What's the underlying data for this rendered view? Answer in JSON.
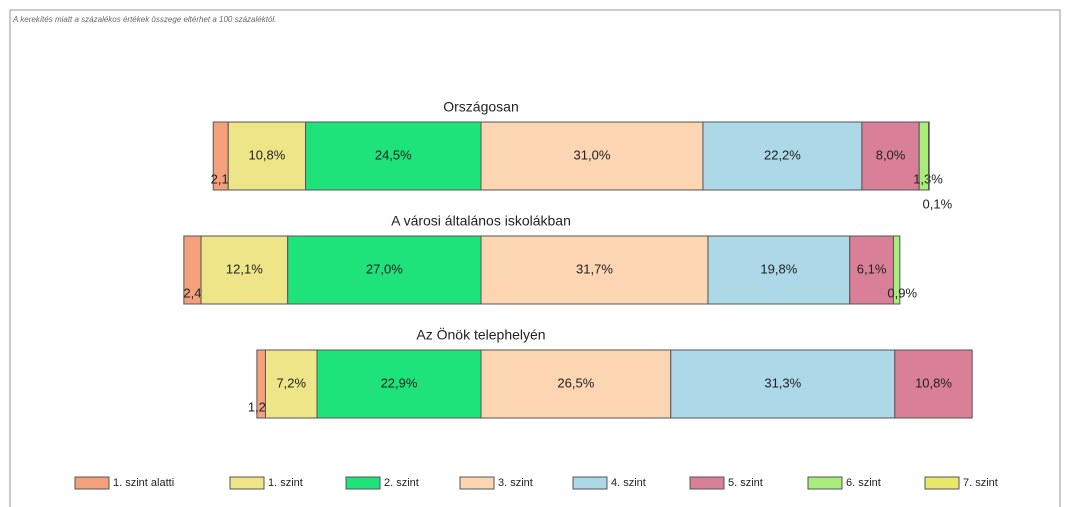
{
  "chart_data": {
    "type": "bar",
    "orientation": "horizontal",
    "stacked": true,
    "note": "A kerekítés miatt a százalékos értékek összege eltérhet a 100 százaléktól.",
    "categories": [
      "Országosan",
      "A városi általános iskolákban",
      "Az Önök telephelyén"
    ],
    "series": [
      {
        "name": "1. szint alatti",
        "color": "#f4a07a",
        "values": [
          2.1,
          2.4,
          1.2
        ],
        "value_labels": [
          "2,1%",
          "2,4%",
          "1,2%"
        ]
      },
      {
        "name": "1. szint",
        "color": "#ede588",
        "values": [
          10.8,
          12.1,
          7.2
        ],
        "value_labels": [
          "10,8%",
          "12,1%",
          "7,2%"
        ]
      },
      {
        "name": "2. szint",
        "color": "#1ee27a",
        "values": [
          24.5,
          27.0,
          22.9
        ],
        "value_labels": [
          "24,5%",
          "27,0%",
          "22,9%"
        ]
      },
      {
        "name": "3. szint",
        "color": "#fcd5b2",
        "values": [
          31.0,
          31.7,
          26.5
        ],
        "value_labels": [
          "31,0%",
          "31,7%",
          "26,5%"
        ]
      },
      {
        "name": "4. szint",
        "color": "#acd8e8",
        "values": [
          22.2,
          19.8,
          31.3
        ],
        "value_labels": [
          "22,2%",
          "19,8%",
          "31,3%"
        ]
      },
      {
        "name": "5. szint",
        "color": "#d98098",
        "values": [
          8.0,
          6.1,
          10.8
        ],
        "value_labels": [
          "8,0%",
          "6,1%",
          "10,8%"
        ]
      },
      {
        "name": "6. szint",
        "color": "#a8ec7c",
        "values": [
          1.3,
          0.9,
          null
        ],
        "value_labels": [
          "1,3%",
          "0,9%",
          null
        ]
      },
      {
        "name": "7. szint",
        "color": "#e8e86a",
        "values": [
          0.1,
          null,
          null
        ],
        "value_labels": [
          "0,1%",
          null,
          null
        ]
      }
    ]
  }
}
